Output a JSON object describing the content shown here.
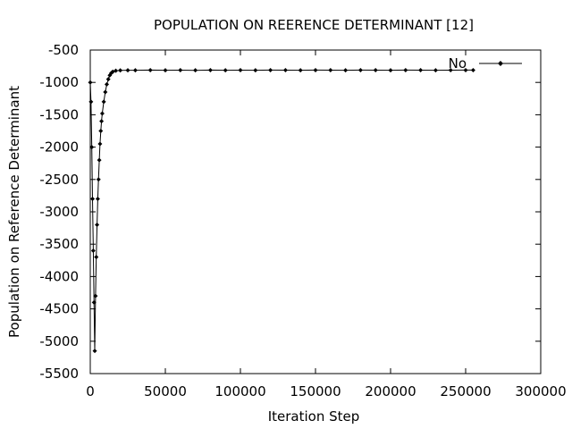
{
  "chart_data": {
    "type": "line",
    "title": "POPULATION ON REERENCE DETERMINANT [12]",
    "xlabel": "Iteration Step",
    "ylabel": "Population on Reference Determinant",
    "xlim": [
      0,
      300000
    ],
    "ylim": [
      -5500,
      -500
    ],
    "xticks": [
      0,
      50000,
      100000,
      150000,
      200000,
      250000,
      300000
    ],
    "yticks": [
      -500,
      -1000,
      -1500,
      -2000,
      -2500,
      -3000,
      -3500,
      -4000,
      -4500,
      -5000,
      -5500
    ],
    "grid": false,
    "legend_position": "top-right",
    "series": [
      {
        "name": "No",
        "color": "#000000",
        "marker": "diamond",
        "x": [
          0,
          500,
          1000,
          1500,
          2000,
          2500,
          3000,
          3500,
          4000,
          4500,
          5000,
          5500,
          6000,
          6500,
          7000,
          7500,
          8000,
          9000,
          10000,
          11000,
          12000,
          13000,
          14000,
          15000,
          17000,
          20000,
          25000,
          30000,
          40000,
          50000,
          60000,
          70000,
          80000,
          90000,
          100000,
          110000,
          120000,
          130000,
          140000,
          150000,
          160000,
          170000,
          180000,
          190000,
          200000,
          210000,
          220000,
          230000,
          240000,
          250000,
          255000
        ],
        "y": [
          -1000,
          -1300,
          -2000,
          -2800,
          -3600,
          -4400,
          -5150,
          -4300,
          -3700,
          -3200,
          -2800,
          -2500,
          -2200,
          -1950,
          -1750,
          -1600,
          -1480,
          -1300,
          -1150,
          -1030,
          -950,
          -890,
          -855,
          -835,
          -820,
          -815,
          -812,
          -812,
          -810,
          -812,
          -811,
          -813,
          -810,
          -812,
          -811,
          -812,
          -810,
          -811,
          -812,
          -810,
          -811,
          -812,
          -810,
          -811,
          -812,
          -810,
          -811,
          -812,
          -811,
          -810,
          -810
        ]
      }
    ]
  }
}
